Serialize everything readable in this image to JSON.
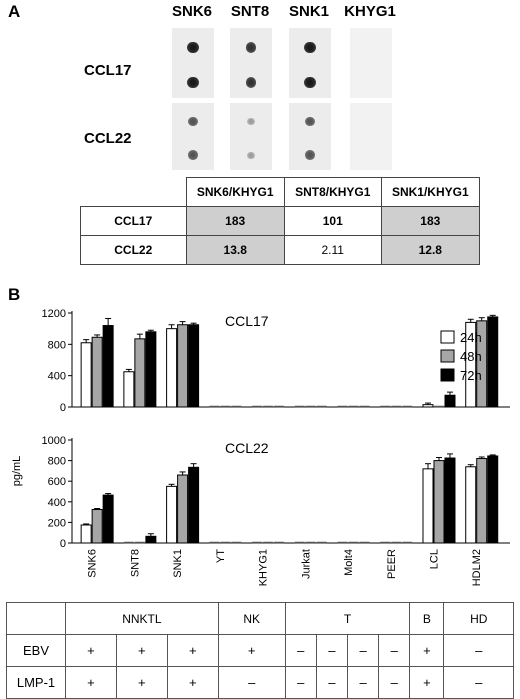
{
  "panel_a": {
    "label": "A",
    "columns": [
      "SNK6",
      "SNT8",
      "SNK1",
      "KHYG1"
    ],
    "rows": [
      "CCL17",
      "CCL22"
    ],
    "table": {
      "headers": [
        "",
        "SNK6/KHYG1",
        "SNT8/KHYG1",
        "SNK1/KHYG1"
      ],
      "rows": [
        {
          "label": "CCL17",
          "values": [
            "183",
            "101",
            "183"
          ]
        },
        {
          "label": "CCL22",
          "values": [
            "13.8",
            "2.11",
            "12.8"
          ]
        }
      ]
    },
    "dot_intensity": {
      "CCL17": [
        0.85,
        0.7,
        0.85,
        0.0
      ],
      "CCL22": [
        0.5,
        0.08,
        0.5,
        0.0
      ]
    }
  },
  "panel_b": {
    "label": "B",
    "ylabel": "pg/mL",
    "legend": [
      "24h",
      "48h",
      "72h"
    ]
  },
  "chart_data": [
    {
      "type": "bar",
      "title": "CCL17",
      "ylabel": "pg/mL",
      "ylim": [
        0,
        1200
      ],
      "yticks": [
        0,
        400,
        800,
        1200
      ],
      "categories": [
        "SNK6",
        "SNT8",
        "SNK1",
        "YT",
        "KHYG1",
        "Jurkat",
        "Molt4",
        "PEER",
        "LCL",
        "HDLM2"
      ],
      "series": [
        {
          "name": "24h",
          "color": "#ffffff",
          "values": [
            820,
            450,
            1000,
            0,
            0,
            0,
            0,
            0,
            30,
            1080
          ],
          "errors": [
            40,
            30,
            50,
            0,
            0,
            0,
            0,
            0,
            20,
            40
          ]
        },
        {
          "name": "48h",
          "color": "#a6a6a6",
          "values": [
            890,
            870,
            1050,
            0,
            0,
            0,
            0,
            0,
            0,
            1100
          ],
          "errors": [
            30,
            60,
            40,
            0,
            0,
            0,
            0,
            0,
            0,
            40
          ]
        },
        {
          "name": "72h",
          "color": "#000000",
          "values": [
            1040,
            960,
            1050,
            0,
            0,
            0,
            0,
            0,
            150,
            1150
          ],
          "errors": [
            90,
            20,
            20,
            0,
            0,
            0,
            0,
            0,
            40,
            20
          ]
        }
      ],
      "legend": "right"
    },
    {
      "type": "bar",
      "title": "CCL22",
      "ylabel": "pg/mL",
      "ylim": [
        0,
        1000
      ],
      "yticks": [
        0,
        200,
        400,
        600,
        800,
        1000
      ],
      "categories": [
        "SNK6",
        "SNT8",
        "SNK1",
        "YT",
        "KHYG1",
        "Jurkat",
        "Molt4",
        "PEER",
        "LCL",
        "HDLM2"
      ],
      "series": [
        {
          "name": "24h",
          "color": "#ffffff",
          "values": [
            175,
            0,
            550,
            0,
            0,
            0,
            0,
            0,
            720,
            740
          ],
          "errors": [
            10,
            0,
            20,
            0,
            0,
            0,
            0,
            0,
            50,
            20
          ]
        },
        {
          "name": "48h",
          "color": "#a6a6a6",
          "values": [
            325,
            0,
            660,
            0,
            0,
            0,
            0,
            0,
            800,
            820
          ],
          "errors": [
            10,
            0,
            30,
            0,
            0,
            0,
            0,
            0,
            30,
            15
          ]
        },
        {
          "name": "72h",
          "color": "#000000",
          "values": [
            465,
            65,
            735,
            0,
            0,
            0,
            0,
            0,
            825,
            845
          ],
          "errors": [
            15,
            25,
            35,
            0,
            0,
            0,
            0,
            0,
            40,
            10
          ]
        }
      ]
    }
  ],
  "group_table": {
    "groups": [
      "NNKTL",
      "NK",
      "T",
      "B",
      "HD"
    ],
    "row_labels": [
      "EBV",
      "LMP-1"
    ],
    "ebv": [
      "+",
      "+",
      "+",
      "+",
      "–",
      "–",
      "–",
      "–",
      "+",
      "–"
    ],
    "lmp1": [
      "+",
      "+",
      "+",
      "–",
      "–",
      "–",
      "–",
      "–",
      "+",
      "–"
    ]
  }
}
